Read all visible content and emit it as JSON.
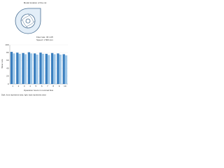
{
  "chart_data": {
    "type": "bar",
    "title": "Model location of the cut",
    "annotations": [
      "Flow rate: 30 m³/h",
      "Speed: 1 500 rpm"
    ],
    "y_label": "Wear rate",
    "x_label": "Operation hours in nominal flow",
    "note": "Dark: front represents wear, light: back represents wear",
    "categories": [
      "1",
      "2",
      "3",
      "4",
      "5",
      "6",
      "7",
      "8",
      "9",
      "10"
    ],
    "series": [
      {
        "name": "Front",
        "color": "#3a7fbf",
        "values": [
          82,
          80,
          79,
          81,
          78,
          80,
          77,
          79,
          78,
          76
        ]
      },
      {
        "name": "Back",
        "color": "#9cc6e8",
        "values": [
          78,
          77,
          76,
          78,
          75,
          77,
          74,
          76,
          75,
          73
        ]
      }
    ],
    "ylim": [
      0,
      100
    ],
    "yticks": [
      0,
      20,
      40,
      60,
      80,
      100
    ],
    "grid": true
  }
}
